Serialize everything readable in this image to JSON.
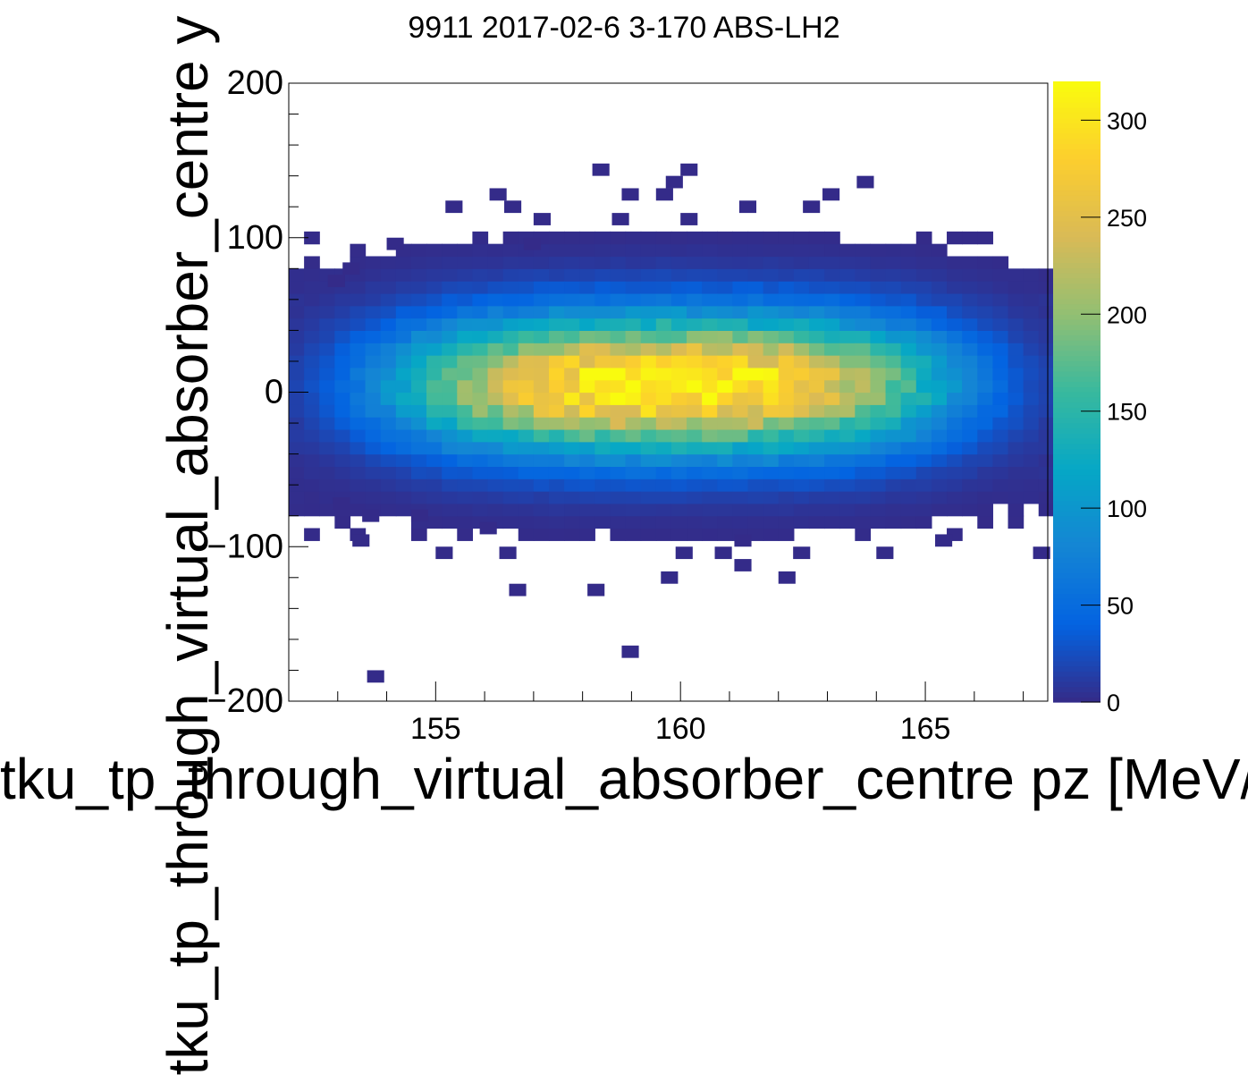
{
  "chart_data": {
    "type": "heatmap",
    "title": "9911 2017-02-6 3-170 ABS-LH2",
    "xlabel": "tku_tp_through_virtual_absorber_centre pz [MeV/c]",
    "ylabel": "tku_tp_through_virtual_absorber_centre y [mm]",
    "xlim": [
      152,
      167.5
    ],
    "ylim": [
      -200,
      200
    ],
    "x_ticks": [
      155,
      160,
      165
    ],
    "x_tick_labels": [
      "155",
      "160",
      "165"
    ],
    "y_ticks": [
      -200,
      -100,
      0,
      100,
      200
    ],
    "y_tick_labels": [
      "−200",
      "−100",
      "0",
      "100",
      "200"
    ],
    "z_range": [
      0,
      320
    ],
    "z_ticks": [
      0,
      50,
      100,
      150,
      200,
      250,
      300
    ],
    "z_tick_labels": [
      "0",
      "50",
      "100",
      "150",
      "200",
      "250",
      "300"
    ],
    "palette": [
      "#352a87",
      "#0363e1",
      "#1485d4",
      "#06a7c6",
      "#38b99e",
      "#92bf73",
      "#d9ba56",
      "#fcce2e",
      "#f9fb0e"
    ],
    "grid": false,
    "legend": "color bar at right",
    "bin_width_x": 0.3125,
    "bin_width_y": 8,
    "core": {
      "x_center": 159.8,
      "y_center": 5,
      "peak_count": 320
    },
    "stray_bins": [
      [
        158.2,
        140
      ],
      [
        160.0,
        140
      ],
      [
        159.7,
        132
      ],
      [
        163.6,
        132
      ],
      [
        156.1,
        124
      ],
      [
        158.8,
        124
      ],
      [
        159.5,
        124
      ],
      [
        162.9,
        124
      ],
      [
        155.2,
        116
      ],
      [
        156.4,
        116
      ],
      [
        161.2,
        116
      ],
      [
        162.5,
        116
      ],
      [
        157.0,
        108
      ],
      [
        158.6,
        108
      ],
      [
        160.0,
        108
      ],
      [
        154.0,
        92
      ],
      [
        156.8,
        92
      ],
      [
        153.1,
        76
      ],
      [
        152.8,
        68
      ],
      [
        152.9,
        -76
      ],
      [
        153.5,
        -84
      ],
      [
        154.5,
        -84
      ],
      [
        155.9,
        -92
      ],
      [
        153.3,
        -100
      ],
      [
        155.0,
        -108
      ],
      [
        156.3,
        -108
      ],
      [
        159.9,
        -108
      ],
      [
        160.7,
        -108
      ],
      [
        161.1,
        -100
      ],
      [
        162.3,
        -108
      ],
      [
        164.0,
        -108
      ],
      [
        165.2,
        -100
      ],
      [
        167.2,
        -108
      ],
      [
        161.1,
        -116
      ],
      [
        162.0,
        -124
      ],
      [
        159.6,
        -124
      ],
      [
        156.5,
        -132
      ],
      [
        158.1,
        -132
      ],
      [
        158.8,
        -172
      ],
      [
        153.6,
        -188
      ]
    ]
  }
}
